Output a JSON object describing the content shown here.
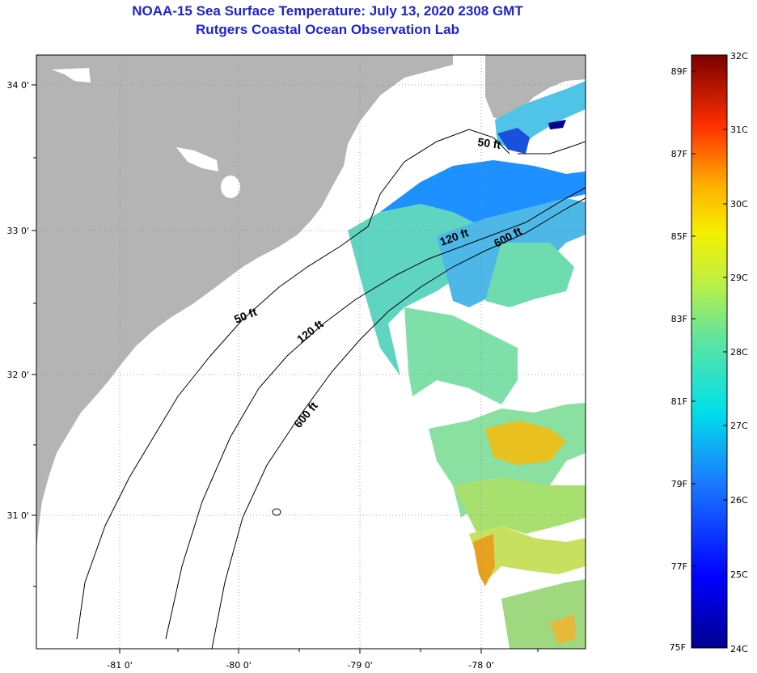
{
  "title": {
    "line1": "NOAA-15 Sea Surface Temperature:  July 13, 2020 2308 GMT",
    "line2": "Rutgers Coastal Ocean Observation Lab"
  },
  "colors": {
    "title": "#1f24c8",
    "land": "#b4b4b4",
    "ocean_nodata": "#ffffff",
    "contour": "#000000"
  },
  "axes": {
    "lat_labels": [
      "34 0'",
      "33 0'",
      "32 0'",
      "31 0'"
    ],
    "lon_labels": [
      "-81 0'",
      "-80 0'",
      "-79 0'",
      "-78 0'"
    ]
  },
  "contours": {
    "shelf_50": "50 ft",
    "shelf_50_ne": "50 ft",
    "shelf_120": "120 ft",
    "shelf_120_ne": "120 ft",
    "shelf_600": "600 ft",
    "shelf_600_ne": "600 ft"
  },
  "colorbar": {
    "fahrenheit": [
      "89F",
      "87F",
      "85F",
      "83F",
      "81F",
      "79F",
      "77F",
      "75F"
    ],
    "celsius": [
      "32C",
      "31C",
      "30C",
      "29C",
      "28C",
      "27C",
      "26C",
      "25C",
      "24C"
    ]
  }
}
